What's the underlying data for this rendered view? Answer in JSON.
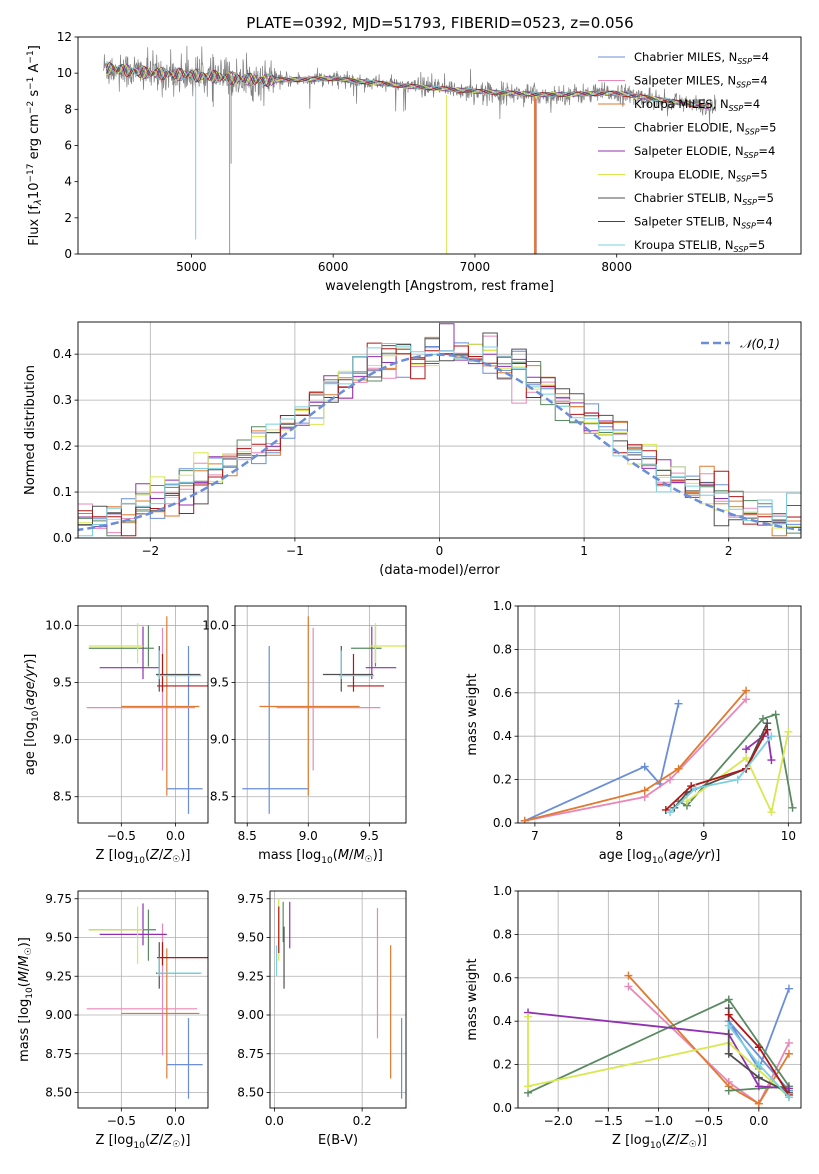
{
  "title": "PLATE=0392, MJD=51793, FIBERID=0523, z=0.056",
  "models": [
    {
      "name": "Chabrier MILES",
      "nssp": "4",
      "color": "#6a8ed8"
    },
    {
      "name": "Salpeter MILES",
      "nssp": "4",
      "color": "#e888b8"
    },
    {
      "name": "Kroupa MILES",
      "nssp": "4",
      "color": "#e07a30"
    },
    {
      "name": "Chabrier ELODIE",
      "nssp": "5",
      "color": "#5a8a62"
    },
    {
      "name": "Salpeter ELODIE",
      "nssp": "4",
      "color": "#9030b0"
    },
    {
      "name": "Kroupa ELODIE",
      "nssp": "5",
      "color": "#d8e850"
    },
    {
      "name": "Chabrier STELIB",
      "nssp": "5",
      "color": "#505050"
    },
    {
      "name": "Salpeter STELIB",
      "nssp": "4",
      "color": "#b01818"
    },
    {
      "name": "Kroupa STELIB",
      "nssp": "5",
      "color": "#78d0e0"
    }
  ],
  "chart_data": [
    {
      "id": "spectrum",
      "type": "line",
      "xlabel": "wavelength [Angstrom, rest frame]",
      "ylabel": "Flux [f",
      "xlim": [
        4200,
        9300
      ],
      "ylim": [
        0,
        12
      ],
      "xticks": [
        5000,
        6000,
        7000,
        8000
      ],
      "yticks": [
        0,
        2,
        4,
        6,
        8,
        10,
        12
      ],
      "data_color": "#808080",
      "x_range_data": [
        4380,
        8700
      ],
      "continuum": {
        "x": [
          4380,
          4700,
          5000,
          5500,
          6000,
          6500,
          7000,
          7500,
          8000,
          8500,
          8700
        ],
        "y": [
          10.3,
          10.0,
          9.9,
          9.6,
          9.7,
          9.3,
          9.0,
          8.8,
          8.9,
          8.3,
          8.1
        ]
      }
    },
    {
      "id": "residuals",
      "type": "histogram",
      "xlabel": "(data-model)/error",
      "ylabel": "Normed distribution",
      "xlim": [
        -2.5,
        2.5
      ],
      "ylim": [
        0,
        0.47
      ],
      "xticks": [
        -2,
        -1,
        0,
        1,
        2
      ],
      "yticks": [
        0.0,
        0.1,
        0.2,
        0.3,
        0.4
      ],
      "bin_width": 0.1,
      "reference": {
        "name": "𝒩(0,1)",
        "mu": 0,
        "sigma": 1,
        "color": "#6a8ed8"
      }
    },
    {
      "id": "age-vs-Z",
      "type": "errorbar",
      "xlabel": "Z [log10(Z/Z☉)]",
      "ylabel": "age [log10(age/yr)]",
      "xlim": [
        -0.9,
        0.3
      ],
      "ylim": [
        8.27,
        10.17
      ],
      "xticks": [
        -0.5,
        0.0
      ],
      "yticks": [
        8.5,
        9.0,
        9.5,
        10.0
      ],
      "points": [
        {
          "model": 0,
          "x": 0.12,
          "xerr": [
            0.2,
            0.13
          ],
          "y": 8.57,
          "yerr": [
            0.22,
            1.25
          ]
        },
        {
          "model": 1,
          "x": -0.12,
          "xerr": [
            0.7,
            0.3
          ],
          "y": 9.28,
          "yerr": [
            0.55,
            0.7
          ]
        },
        {
          "model": 2,
          "x": -0.08,
          "xerr": [
            0.42,
            0.3
          ],
          "y": 9.29,
          "yerr": [
            0.78,
            0.79
          ]
        },
        {
          "model": 3,
          "x": -0.25,
          "xerr": [
            0.55,
            0.05
          ],
          "y": 9.8,
          "yerr": [
            0.16,
            0.2
          ]
        },
        {
          "model": 4,
          "x": -0.3,
          "xerr": [
            0.4,
            0.15
          ],
          "y": 9.63,
          "yerr": [
            0.1,
            0.36
          ]
        },
        {
          "model": 5,
          "x": -0.35,
          "xerr": [
            0.45,
            0.05
          ],
          "y": 9.82,
          "yerr": [
            0.15,
            0.2
          ]
        },
        {
          "model": 6,
          "x": -0.15,
          "xerr": [
            0.03,
            0.38
          ],
          "y": 9.57,
          "yerr": [
            0.15,
            0.25
          ]
        },
        {
          "model": 7,
          "x": -0.12,
          "xerr": [
            0.05,
            0.42
          ],
          "y": 9.47,
          "yerr": [
            0.05,
            0.28
          ]
        },
        {
          "model": 8,
          "x": -0.15,
          "xerr": [
            0.02,
            0.39
          ],
          "y": 9.56,
          "yerr": [
            0.03,
            0.22
          ]
        }
      ]
    },
    {
      "id": "age-vs-mass",
      "type": "errorbar",
      "xlabel": "mass [log10(M/M☉)]",
      "ylabel": "",
      "xlim": [
        8.4,
        9.8
      ],
      "ylim": [
        8.27,
        10.17
      ],
      "xticks": [
        8.5,
        9.0,
        9.5
      ],
      "yticks": [
        8.5,
        9.0,
        9.5,
        10.0
      ],
      "points": [
        {
          "model": 0,
          "x": 8.68,
          "xerr": [
            0.22,
            0.32
          ],
          "y": 8.57,
          "yerr": [
            0.22,
            1.25
          ]
        },
        {
          "model": 1,
          "x": 9.04,
          "xerr": [
            0.3,
            0.55
          ],
          "y": 9.28,
          "yerr": [
            0.55,
            0.7
          ]
        },
        {
          "model": 2,
          "x": 9.0,
          "xerr": [
            0.4,
            0.42
          ],
          "y": 9.29,
          "yerr": [
            0.78,
            0.79
          ]
        },
        {
          "model": 3,
          "x": 9.55,
          "xerr": [
            0.2,
            0.05
          ],
          "y": 9.8,
          "yerr": [
            0.16,
            0.2
          ]
        },
        {
          "model": 4,
          "x": 9.52,
          "xerr": [
            0.05,
            0.2
          ],
          "y": 9.63,
          "yerr": [
            0.1,
            0.36
          ]
        },
        {
          "model": 5,
          "x": 9.55,
          "xerr": [
            0.05,
            0.25
          ],
          "y": 9.82,
          "yerr": [
            0.15,
            0.2
          ]
        },
        {
          "model": 6,
          "x": 9.27,
          "xerr": [
            0.15,
            0.26
          ],
          "y": 9.57,
          "yerr": [
            0.15,
            0.25
          ]
        },
        {
          "model": 7,
          "x": 9.37,
          "xerr": [
            0.05,
            0.25
          ],
          "y": 9.47,
          "yerr": [
            0.05,
            0.28
          ]
        },
        {
          "model": 8,
          "x": 9.27,
          "xerr": [
            0.02,
            0.27
          ],
          "y": 9.56,
          "yerr": [
            0.03,
            0.22
          ]
        }
      ]
    },
    {
      "id": "weight-vs-age",
      "type": "line",
      "xlabel": "age [log10(age/yr)]",
      "ylabel": "mass weight",
      "xlim": [
        6.8,
        10.15
      ],
      "ylim": [
        0,
        1
      ],
      "xticks": [
        7,
        8,
        9,
        10
      ],
      "yticks": [
        0.0,
        0.2,
        0.4,
        0.6,
        0.8,
        1.0
      ],
      "series": [
        {
          "model": 0,
          "x": [
            6.88,
            8.3,
            8.48,
            8.7
          ],
          "y": [
            0.01,
            0.26,
            0.18,
            0.55
          ]
        },
        {
          "model": 1,
          "x": [
            6.88,
            8.3,
            8.6,
            9.5
          ],
          "y": [
            0.01,
            0.12,
            0.2,
            0.57
          ]
        },
        {
          "model": 2,
          "x": [
            6.88,
            8.3,
            8.7,
            9.5
          ],
          "y": [
            0.01,
            0.15,
            0.25,
            0.61
          ]
        },
        {
          "model": 3,
          "x": [
            8.7,
            8.8,
            9.7,
            9.85,
            10.05
          ],
          "y": [
            0.1,
            0.08,
            0.48,
            0.5,
            0.07
          ]
        },
        {
          "model": 4,
          "x": [
            9.5,
            9.7,
            9.75,
            9.8
          ],
          "y": [
            0.34,
            0.4,
            0.43,
            0.29
          ]
        },
        {
          "model": 5,
          "x": [
            8.8,
            9.5,
            9.8,
            10.0
          ],
          "y": [
            0.1,
            0.3,
            0.05,
            0.42
          ]
        },
        {
          "model": 6,
          "x": [
            8.65,
            8.8,
            9.5,
            9.75
          ],
          "y": [
            0.07,
            0.14,
            0.25,
            0.46
          ]
        },
        {
          "model": 7,
          "x": [
            8.55,
            8.85,
            9.5,
            9.75
          ],
          "y": [
            0.06,
            0.17,
            0.25,
            0.43
          ]
        },
        {
          "model": 8,
          "x": [
            8.6,
            8.9,
            9.4,
            9.8
          ],
          "y": [
            0.05,
            0.16,
            0.2,
            0.4
          ]
        }
      ]
    },
    {
      "id": "mass-vs-Z",
      "type": "errorbar",
      "xlabel": "Z [log10(Z/Z☉)]",
      "ylabel": "mass [log10(M/M☉)]",
      "xlim": [
        -0.9,
        0.3
      ],
      "ylim": [
        8.4,
        9.8
      ],
      "xticks": [
        -0.5,
        0.0
      ],
      "yticks": [
        8.5,
        8.75,
        9.0,
        9.25,
        9.5,
        9.75
      ],
      "points": [
        {
          "model": 0,
          "x": 0.12,
          "xerr": [
            0.2,
            0.13
          ],
          "y": 8.68,
          "yerr": [
            0.22,
            0.3
          ]
        },
        {
          "model": 1,
          "x": -0.12,
          "xerr": [
            0.7,
            0.32
          ],
          "y": 9.04,
          "yerr": [
            0.3,
            0.55
          ]
        },
        {
          "model": 2,
          "x": -0.08,
          "xerr": [
            0.42,
            0.3
          ],
          "y": 9.01,
          "yerr": [
            0.42,
            0.42
          ]
        },
        {
          "model": 3,
          "x": -0.25,
          "xerr": [
            0.55,
            0.07
          ],
          "y": 9.55,
          "yerr": [
            0.2,
            0.13
          ]
        },
        {
          "model": 4,
          "x": -0.3,
          "xerr": [
            0.4,
            0.22
          ],
          "y": 9.52,
          "yerr": [
            0.07,
            0.2
          ]
        },
        {
          "model": 5,
          "x": -0.35,
          "xerr": [
            0.45,
            0.05
          ],
          "y": 9.55,
          "yerr": [
            0.22,
            0.15
          ]
        },
        {
          "model": 6,
          "x": -0.15,
          "xerr": [
            0.03,
            0.38
          ],
          "y": 9.27,
          "yerr": [
            0.1,
            0.2
          ]
        },
        {
          "model": 7,
          "x": -0.12,
          "xerr": [
            0.05,
            0.42
          ],
          "y": 9.37,
          "yerr": [
            0.05,
            0.1
          ]
        },
        {
          "model": 8,
          "x": -0.15,
          "xerr": [
            0.02,
            0.39
          ],
          "y": 9.27,
          "yerr": [
            0.02,
            0.1
          ]
        }
      ]
    },
    {
      "id": "mass-vs-ebv",
      "type": "errorbar",
      "xlabel": "E(B-V)",
      "ylabel": "",
      "xlim": [
        -0.01,
        0.3
      ],
      "ylim": [
        8.4,
        9.8
      ],
      "xticks": [
        0.0,
        0.2
      ],
      "yticks": [
        8.5,
        8.75,
        9.0,
        9.25,
        9.5,
        9.75
      ],
      "points": [
        {
          "model": 0,
          "x": 0.29,
          "xerr": [
            0,
            0
          ],
          "y": 8.72,
          "yerr": [
            0.26,
            0.26
          ]
        },
        {
          "model": 1,
          "x": 0.235,
          "xerr": [
            0,
            0
          ],
          "y": 9.27,
          "yerr": [
            0.42,
            0.42
          ]
        },
        {
          "model": 2,
          "x": 0.265,
          "xerr": [
            0,
            0
          ],
          "y": 9.02,
          "yerr": [
            0.43,
            0.43
          ]
        },
        {
          "model": 3,
          "x": 0.02,
          "xerr": [
            0,
            0
          ],
          "y": 9.6,
          "yerr": [
            0.13,
            0.13
          ]
        },
        {
          "model": 4,
          "x": 0.035,
          "xerr": [
            0,
            0
          ],
          "y": 9.58,
          "yerr": [
            0.15,
            0.15
          ]
        },
        {
          "model": 5,
          "x": 0.01,
          "xerr": [
            0,
            0
          ],
          "y": 9.55,
          "yerr": [
            0.2,
            0.2
          ]
        },
        {
          "model": 6,
          "x": 0.022,
          "xerr": [
            0,
            0
          ],
          "y": 9.37,
          "yerr": [
            0.2,
            0.2
          ]
        },
        {
          "model": 7,
          "x": 0.01,
          "xerr": [
            0,
            0
          ],
          "y": 9.55,
          "yerr": [
            0.15,
            0.15
          ]
        },
        {
          "model": 8,
          "x": 0.005,
          "xerr": [
            0,
            0
          ],
          "y": 9.35,
          "yerr": [
            0.1,
            0.1
          ]
        }
      ]
    },
    {
      "id": "weight-vs-Z",
      "type": "line",
      "xlabel": "Z [log10(Z/Z☉)]",
      "ylabel": "mass weight",
      "xlim": [
        -2.4,
        0.42
      ],
      "ylim": [
        0,
        1
      ],
      "xticks": [
        -2.0,
        -1.5,
        -1.0,
        -0.5,
        0.0
      ],
      "yticks": [
        0.0,
        0.2,
        0.4,
        0.6,
        0.8,
        1.0
      ],
      "series": [
        {
          "model": 0,
          "x": [
            0.3,
            0.0,
            -0.3,
            0.3
          ],
          "y": [
            0.55,
            0.18,
            0.4,
            0.08
          ]
        },
        {
          "model": 1,
          "x": [
            -1.3,
            -0.3,
            0.0,
            0.3
          ],
          "y": [
            0.56,
            0.12,
            0.02,
            0.3
          ]
        },
        {
          "model": 2,
          "x": [
            -1.3,
            -0.3,
            0.0,
            0.3
          ],
          "y": [
            0.61,
            0.1,
            0.02,
            0.25
          ]
        },
        {
          "model": 3,
          "x": [
            -2.3,
            -0.3,
            0.3,
            -0.3
          ],
          "y": [
            0.07,
            0.5,
            0.1,
            0.08
          ]
        },
        {
          "model": 4,
          "x": [
            -2.3,
            -0.3,
            0.0,
            0.3
          ],
          "y": [
            0.44,
            0.34,
            0.1,
            0.09
          ]
        },
        {
          "model": 5,
          "x": [
            -2.3,
            -2.3,
            -0.3,
            0.3
          ],
          "y": [
            0.42,
            0.1,
            0.3,
            0.05
          ]
        },
        {
          "model": 6,
          "x": [
            -0.3,
            -0.3,
            0.0,
            0.3
          ],
          "y": [
            0.46,
            0.25,
            0.14,
            0.07
          ]
        },
        {
          "model": 7,
          "x": [
            -0.3,
            0.0,
            0.3
          ],
          "y": [
            0.43,
            0.28,
            0.06
          ]
        },
        {
          "model": 8,
          "x": [
            -0.3,
            0.0,
            0.3
          ],
          "y": [
            0.38,
            0.2,
            0.05
          ]
        }
      ]
    }
  ]
}
